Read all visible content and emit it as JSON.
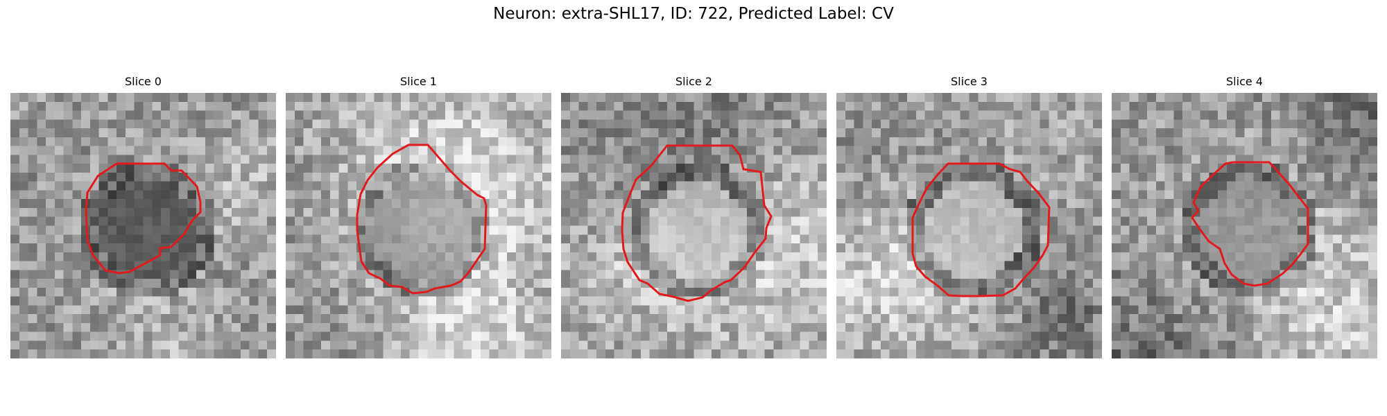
{
  "figure": {
    "title": "Neuron: extra-SHL17, ID: 722, Predicted Label: CV"
  },
  "slices": [
    {
      "title": "Slice 0",
      "center_tone": "dark"
    },
    {
      "title": "Slice 1",
      "center_tone": "mid"
    },
    {
      "title": "Slice 2",
      "center_tone": "light"
    },
    {
      "title": "Slice 3",
      "center_tone": "light"
    },
    {
      "title": "Slice 4",
      "center_tone": "mid"
    }
  ],
  "colors": {
    "contour": "#e31a1c",
    "background": "#ffffff"
  }
}
